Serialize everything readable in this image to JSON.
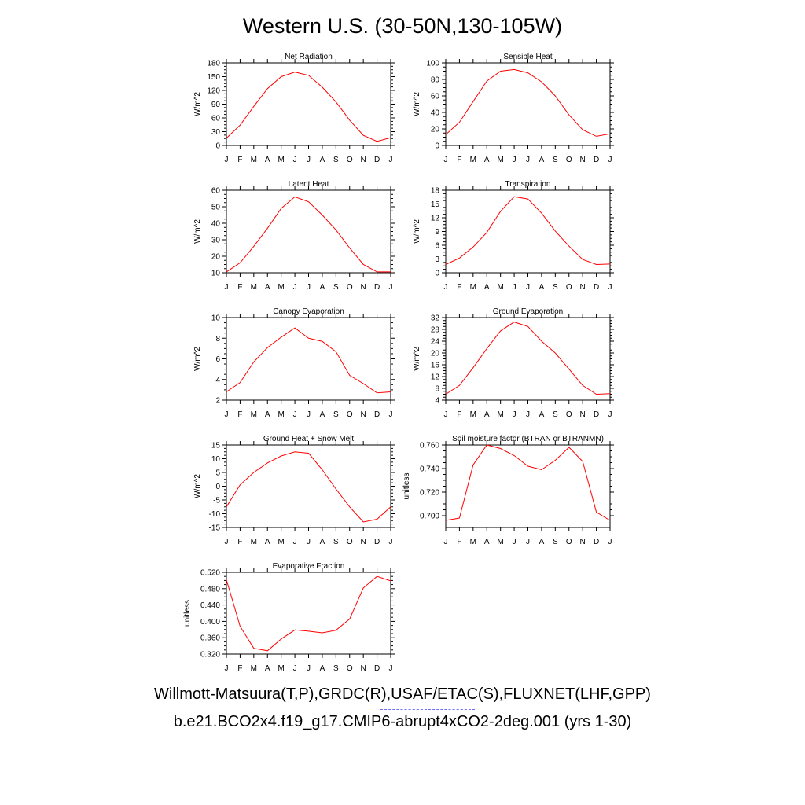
{
  "title": "Western U.S. (30-50N,130-105W)",
  "months": [
    "J",
    "F",
    "M",
    "A",
    "M",
    "J",
    "J",
    "A",
    "S",
    "O",
    "N",
    "D",
    "J"
  ],
  "colors": {
    "model_line": "#ff0000",
    "obs_legend": "#6b6bff",
    "model_legend": "#ff6b6b"
  },
  "legend": {
    "observations": "Willmott-Matsuura(T,P),GRDC(R),USAF/ETAC(S),FLUXNET(LHF,GPP)",
    "model": "b.e21.BCO2x4.f19_g17.CMIP6-abrupt4xCO2-2deg.001 (yrs 1-30)"
  },
  "chart_data": [
    {
      "type": "line",
      "title": "Net Radiation",
      "ylabel": "W/m^2",
      "ylim": [
        0,
        180
      ],
      "yticks": [
        0,
        30,
        60,
        90,
        120,
        150,
        180
      ],
      "tick_decimals": 0,
      "values": [
        16,
        44,
        85,
        124,
        150,
        160,
        153,
        127,
        95,
        55,
        22,
        9,
        17
      ]
    },
    {
      "type": "line",
      "title": "Sensible Heat",
      "ylabel": "W/m^2",
      "ylim": [
        0,
        100
      ],
      "yticks": [
        0,
        20,
        40,
        60,
        80,
        100
      ],
      "tick_decimals": 0,
      "values": [
        13,
        28,
        53,
        78,
        90,
        92,
        88,
        77,
        60,
        37,
        19,
        11,
        14
      ]
    },
    {
      "type": "line",
      "title": "Latent Heat",
      "ylabel": "W/m^2",
      "ylim": [
        10,
        60
      ],
      "yticks": [
        10,
        20,
        30,
        40,
        50,
        60
      ],
      "tick_decimals": 0,
      "values": [
        10.5,
        16,
        26,
        37,
        49,
        56,
        53,
        45,
        36,
        25,
        15,
        10.5,
        10.5
      ]
    },
    {
      "type": "line",
      "title": "Transpiration",
      "ylabel": "W/m^2",
      "ylim": [
        0,
        18
      ],
      "yticks": [
        0,
        3,
        6,
        9,
        12,
        15,
        18
      ],
      "tick_decimals": 0,
      "values": [
        1.8,
        3.2,
        5.6,
        8.8,
        13.4,
        16.6,
        16.1,
        13,
        9.1,
        5.8,
        2.9,
        1.8,
        1.9
      ]
    },
    {
      "type": "line",
      "title": "Canopy Evaporation",
      "ylabel": "W/m^2",
      "ylim": [
        2,
        10
      ],
      "yticks": [
        2,
        4,
        6,
        8,
        10
      ],
      "tick_decimals": 0,
      "values": [
        2.8,
        3.7,
        5.7,
        7.1,
        8.1,
        9.0,
        8.0,
        7.7,
        6.7,
        4.4,
        3.6,
        2.7,
        2.8
      ]
    },
    {
      "type": "line",
      "title": "Ground Evaporation",
      "ylabel": "W/m^2",
      "ylim": [
        4,
        32
      ],
      "yticks": [
        4,
        8,
        12,
        16,
        20,
        24,
        28,
        32
      ],
      "tick_decimals": 0,
      "values": [
        6,
        9,
        15,
        21.5,
        27.5,
        30.5,
        29,
        24,
        20,
        14.5,
        9,
        6,
        6.2
      ]
    },
    {
      "type": "line",
      "title": "Ground Heat + Snow Melt",
      "ylabel": "W/m^2",
      "ylim": [
        -15,
        15
      ],
      "yticks": [
        -15,
        -10,
        -5,
        0,
        5,
        10,
        15
      ],
      "tick_decimals": 0,
      "values": [
        -7.5,
        0.5,
        5,
        8.5,
        11,
        12.5,
        12,
        6,
        -1,
        -7.5,
        -13,
        -12,
        -7.5
      ]
    },
    {
      "type": "line",
      "title": "Soil moisture factor (BTRAN or BTRANMN)",
      "ylabel": "unitless",
      "ylim": [
        0.69,
        0.76
      ],
      "yticks": [
        0.7,
        0.72,
        0.74,
        0.76
      ],
      "tick_decimals": 3,
      "values": [
        0.696,
        0.698,
        0.743,
        0.76,
        0.757,
        0.751,
        0.742,
        0.739,
        0.747,
        0.758,
        0.746,
        0.703,
        0.696
      ]
    },
    {
      "type": "line",
      "title": "Evaporative Fraction",
      "ylabel": "unitless",
      "ylim": [
        0.32,
        0.52
      ],
      "yticks": [
        0.32,
        0.36,
        0.4,
        0.44,
        0.48,
        0.52
      ],
      "tick_decimals": 3,
      "values": [
        0.502,
        0.388,
        0.334,
        0.328,
        0.357,
        0.379,
        0.376,
        0.372,
        0.378,
        0.406,
        0.482,
        0.51,
        0.499
      ]
    }
  ]
}
